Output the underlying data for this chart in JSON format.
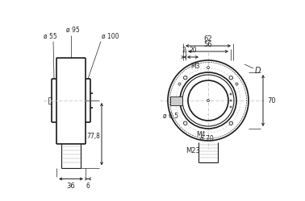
{
  "bg_color": "#ffffff",
  "line_color": "#1a1a1a",
  "dim_color": "#222222",
  "centerline_color": "#bbbbbb",
  "fig_width": 3.78,
  "fig_height": 2.5,
  "dpi": 100,
  "labels": {
    "d95": "ø 95",
    "d55": "ø 55",
    "d100": "ø 100",
    "d65": "ø 6,5",
    "d70": "ø 70",
    "m3": "M3",
    "m4": "M4",
    "m23": "M23",
    "D": "D",
    "dim_62": "62",
    "dim_56": "56",
    "dim_2": "2",
    "dim_20": "20",
    "dim_70": "70",
    "dim_36": "36",
    "dim_6": "6",
    "dim_778": "77,8"
  }
}
